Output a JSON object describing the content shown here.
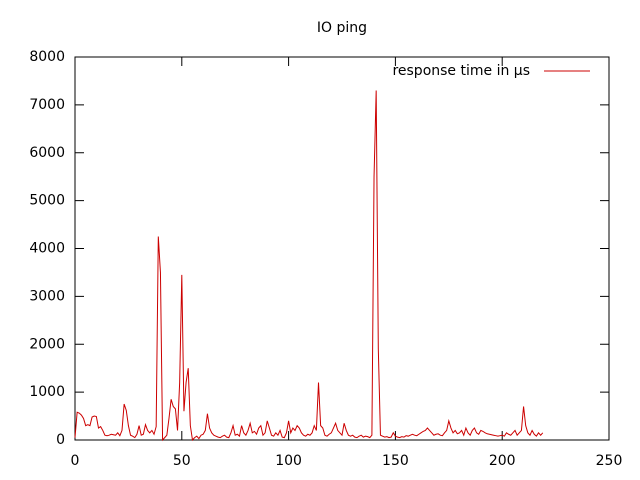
{
  "chart_data": {
    "type": "line",
    "title": "IO ping",
    "x": [
      0,
      1,
      2,
      3,
      4,
      5,
      6,
      7,
      8,
      9,
      10,
      11,
      12,
      13,
      14,
      15,
      16,
      17,
      18,
      19,
      20,
      21,
      22,
      23,
      24,
      25,
      26,
      27,
      28,
      29,
      30,
      31,
      32,
      33,
      34,
      35,
      36,
      37,
      38,
      39,
      40,
      41,
      42,
      43,
      44,
      45,
      46,
      47,
      48,
      49,
      50,
      51,
      52,
      53,
      54,
      55,
      56,
      57,
      58,
      59,
      60,
      61,
      62,
      63,
      64,
      65,
      66,
      67,
      68,
      69,
      70,
      71,
      72,
      73,
      74,
      75,
      76,
      77,
      78,
      79,
      80,
      81,
      82,
      83,
      84,
      85,
      86,
      87,
      88,
      89,
      90,
      91,
      92,
      93,
      94,
      95,
      96,
      97,
      98,
      99,
      100,
      101,
      102,
      103,
      104,
      105,
      106,
      107,
      108,
      109,
      110,
      111,
      112,
      113,
      114,
      115,
      116,
      117,
      118,
      119,
      120,
      121,
      122,
      123,
      124,
      125,
      126,
      127,
      128,
      129,
      130,
      131,
      132,
      133,
      134,
      135,
      136,
      137,
      138,
      139,
      140,
      141,
      142,
      143,
      144,
      145,
      146,
      147,
      148,
      149,
      150,
      151,
      152,
      153,
      154,
      155,
      156,
      157,
      158,
      159,
      160,
      161,
      162,
      163,
      164,
      165,
      166,
      167,
      168,
      169,
      170,
      171,
      172,
      173,
      174,
      175,
      176,
      177,
      178,
      179,
      180,
      181,
      182,
      183,
      184,
      185,
      186,
      187,
      188,
      189,
      190,
      191,
      192,
      193,
      194,
      195,
      196,
      197,
      198,
      199,
      200,
      201,
      202,
      203,
      204,
      205,
      206,
      207,
      208,
      209,
      210,
      211,
      212,
      213,
      214,
      215,
      216,
      217,
      218,
      219
    ],
    "series": [
      {
        "name": "response time in µs",
        "color": "#cc0000",
        "values": [
          50,
          580,
          560,
          520,
          450,
          300,
          320,
          300,
          480,
          500,
          490,
          250,
          280,
          200,
          100,
          90,
          100,
          120,
          110,
          100,
          150,
          90,
          200,
          750,
          620,
          300,
          100,
          80,
          50,
          120,
          300,
          100,
          120,
          320,
          200,
          150,
          200,
          120,
          280,
          4250,
          3500,
          0,
          50,
          100,
          450,
          850,
          700,
          650,
          200,
          1200,
          3450,
          600,
          1200,
          1500,
          300,
          0,
          50,
          80,
          30,
          100,
          120,
          200,
          550,
          250,
          150,
          100,
          80,
          60,
          50,
          80,
          100,
          60,
          50,
          150,
          300,
          100,
          120,
          80,
          300,
          150,
          100,
          200,
          350,
          150,
          180,
          120,
          250,
          300,
          100,
          150,
          400,
          250,
          100,
          80,
          150,
          100,
          200,
          60,
          50,
          150,
          400,
          150,
          250,
          200,
          300,
          250,
          150,
          100,
          80,
          120,
          100,
          150,
          300,
          200,
          1200,
          300,
          250,
          100,
          80,
          120,
          150,
          250,
          350,
          200,
          150,
          100,
          350,
          200,
          100,
          80,
          100,
          60,
          50,
          80,
          100,
          60,
          80,
          70,
          50,
          100,
          5500,
          7300,
          1900,
          100,
          80,
          60,
          70,
          50,
          60,
          150,
          80,
          60,
          50,
          70,
          60,
          90,
          80,
          100,
          120,
          100,
          90,
          120,
          150,
          180,
          200,
          250,
          200,
          150,
          100,
          120,
          130,
          100,
          90,
          150,
          200,
          400,
          250,
          150,
          200,
          130,
          150,
          200,
          100,
          250,
          150,
          100,
          200,
          250,
          150,
          120,
          200,
          180,
          150,
          130,
          120,
          110,
          100,
          90,
          80,
          90,
          100,
          80,
          150,
          120,
          100,
          150,
          200,
          100,
          150,
          200,
          700,
          300,
          150,
          100,
          200,
          120,
          80,
          150,
          100,
          150
        ]
      }
    ],
    "xlim": [
      0,
      250
    ],
    "xticks": [
      0,
      50,
      100,
      150,
      200,
      250
    ],
    "ylim": [
      0,
      8000
    ],
    "yticks": [
      0,
      1000,
      2000,
      3000,
      4000,
      5000,
      6000,
      7000,
      8000
    ],
    "legend": "top-right"
  }
}
